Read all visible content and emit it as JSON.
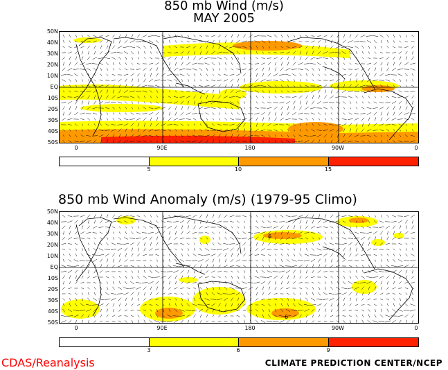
{
  "panel1": {
    "title_line1": "850 mb Wind (m/s)",
    "title_line2": "MAY 2005",
    "lat_labels": [
      "50N",
      "40N",
      "30N",
      "20N",
      "10N",
      "EQ",
      "10S",
      "20S",
      "30S",
      "40S",
      "50S"
    ],
    "lon_labels": [
      "0",
      "90E",
      "180",
      "90W",
      "0"
    ],
    "colorbar": {
      "colors": [
        "#ffffff",
        "#ffff00",
        "#ff9900",
        "#ff2200"
      ],
      "thresholds": [
        "5",
        "10",
        "15"
      ]
    }
  },
  "panel2": {
    "title": "850 mb Wind Anomaly (m/s) (1979-95 Climo)",
    "lat_labels": [
      "50N",
      "40N",
      "30N",
      "20N",
      "10N",
      "EQ",
      "10S",
      "20S",
      "30S",
      "40S",
      "50S"
    ],
    "lon_labels": [
      "0",
      "90E",
      "180",
      "90W",
      "0"
    ],
    "contour_labels": [
      "6",
      "6"
    ],
    "colorbar": {
      "colors": [
        "#ffffff",
        "#ffff00",
        "#ff9900",
        "#ff2200"
      ],
      "thresholds": [
        "3",
        "6",
        "9"
      ]
    }
  },
  "footer": {
    "left": "CDAS/Reanalysis",
    "right": "CLIMATE PREDICTION CENTER/NCEP"
  },
  "colors": {
    "level1": "#ffff00",
    "level2": "#ff9900",
    "level3": "#ff2200",
    "footer_left": "#ff0000"
  }
}
